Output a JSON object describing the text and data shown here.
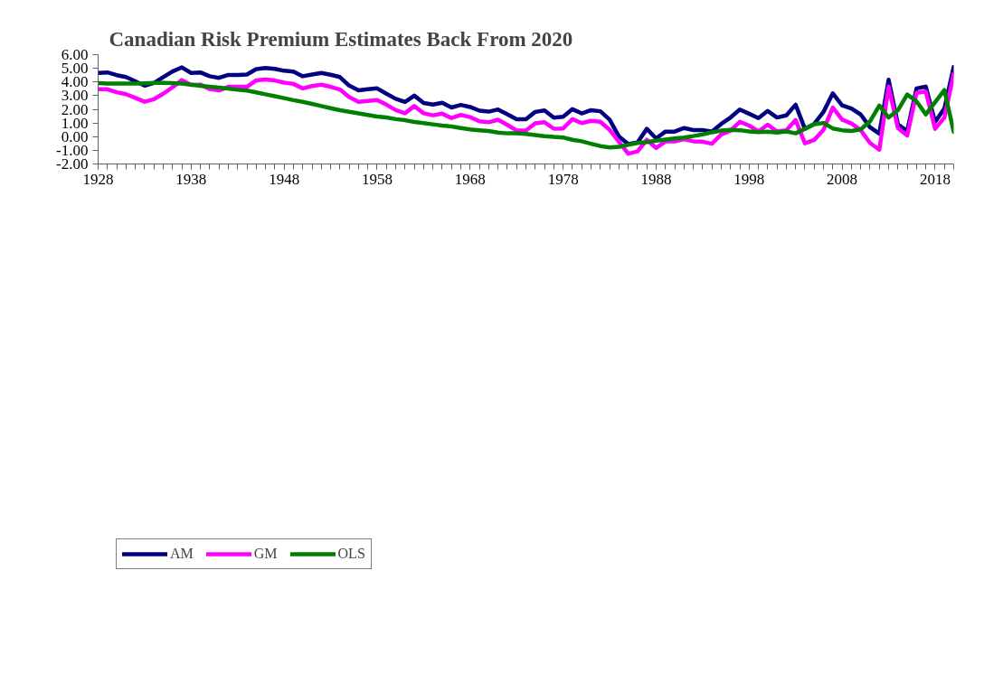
{
  "chart_data": {
    "type": "line",
    "title": "Canadian Risk Premium Estimates Back From 2020",
    "x": [
      1928,
      1929,
      1930,
      1931,
      1932,
      1933,
      1934,
      1935,
      1936,
      1937,
      1938,
      1939,
      1940,
      1941,
      1942,
      1943,
      1944,
      1945,
      1946,
      1947,
      1948,
      1949,
      1950,
      1951,
      1952,
      1953,
      1954,
      1955,
      1956,
      1957,
      1958,
      1959,
      1960,
      1961,
      1962,
      1963,
      1964,
      1965,
      1966,
      1967,
      1968,
      1969,
      1970,
      1971,
      1972,
      1973,
      1974,
      1975,
      1976,
      1977,
      1978,
      1979,
      1980,
      1981,
      1982,
      1983,
      1984,
      1985,
      1986,
      1987,
      1988,
      1989,
      1990,
      1991,
      1992,
      1993,
      1994,
      1995,
      1996,
      1997,
      1998,
      1999,
      2000,
      2001,
      2002,
      2003,
      2004,
      2005,
      2006,
      2007,
      2008,
      2009,
      2010,
      2011,
      2012,
      2013,
      2014,
      2015,
      2016,
      2017,
      2018,
      2019,
      2020
    ],
    "series": [
      {
        "name": "AM",
        "color": "#000080",
        "values": [
          4.66,
          4.7,
          4.5,
          4.36,
          4.05,
          3.73,
          3.93,
          4.36,
          4.77,
          5.07,
          4.66,
          4.7,
          4.42,
          4.3,
          4.52,
          4.52,
          4.55,
          4.94,
          5.02,
          4.96,
          4.82,
          4.76,
          4.42,
          4.55,
          4.66,
          4.53,
          4.36,
          3.73,
          3.39,
          3.47,
          3.53,
          3.14,
          2.77,
          2.54,
          3.0,
          2.46,
          2.35,
          2.48,
          2.13,
          2.32,
          2.17,
          1.9,
          1.83,
          1.99,
          1.63,
          1.27,
          1.27,
          1.81,
          1.92,
          1.39,
          1.45,
          2.01,
          1.7,
          1.94,
          1.86,
          1.25,
          0.01,
          -0.55,
          -0.43,
          0.57,
          -0.13,
          0.37,
          0.37,
          0.63,
          0.48,
          0.48,
          0.36,
          0.93,
          1.4,
          1.98,
          1.68,
          1.36,
          1.88,
          1.4,
          1.55,
          2.34,
          0.57,
          0.93,
          1.81,
          3.17,
          2.29,
          2.06,
          1.62,
          0.69,
          0.22,
          4.16,
          0.91,
          0.41,
          3.53,
          3.66,
          1.07,
          2.06,
          5.11
        ]
      },
      {
        "name": "GM",
        "color": "#ff00ff",
        "values": [
          3.47,
          3.47,
          3.25,
          3.11,
          2.83,
          2.55,
          2.74,
          3.14,
          3.61,
          4.14,
          3.78,
          3.81,
          3.48,
          3.38,
          3.65,
          3.65,
          3.65,
          4.12,
          4.18,
          4.11,
          3.95,
          3.86,
          3.53,
          3.7,
          3.8,
          3.65,
          3.45,
          2.89,
          2.55,
          2.61,
          2.68,
          2.34,
          1.94,
          1.71,
          2.24,
          1.71,
          1.56,
          1.68,
          1.36,
          1.59,
          1.43,
          1.12,
          1.05,
          1.24,
          0.86,
          0.45,
          0.45,
          0.97,
          1.06,
          0.58,
          0.6,
          1.28,
          0.99,
          1.16,
          1.09,
          0.5,
          -0.37,
          -1.25,
          -1.08,
          -0.23,
          -0.83,
          -0.35,
          -0.35,
          -0.18,
          -0.34,
          -0.37,
          -0.52,
          0.16,
          0.44,
          1.09,
          0.81,
          0.38,
          0.88,
          0.38,
          0.47,
          1.22,
          -0.49,
          -0.24,
          0.5,
          2.12,
          1.25,
          0.97,
          0.47,
          -0.46,
          -0.96,
          3.66,
          0.63,
          0.08,
          3.2,
          3.3,
          0.57,
          1.4,
          4.59
        ]
      },
      {
        "name": "OLS",
        "color": "#008000",
        "values": [
          3.91,
          3.88,
          3.88,
          3.88,
          3.88,
          3.9,
          3.93,
          3.94,
          3.91,
          3.88,
          3.8,
          3.72,
          3.65,
          3.58,
          3.52,
          3.43,
          3.37,
          3.24,
          3.1,
          2.96,
          2.82,
          2.67,
          2.54,
          2.4,
          2.24,
          2.08,
          1.93,
          1.82,
          1.7,
          1.59,
          1.47,
          1.4,
          1.28,
          1.2,
          1.07,
          0.99,
          0.9,
          0.81,
          0.74,
          0.63,
          0.53,
          0.47,
          0.41,
          0.3,
          0.24,
          0.24,
          0.2,
          0.12,
          0.04,
          -0.02,
          -0.06,
          -0.23,
          -0.34,
          -0.52,
          -0.69,
          -0.79,
          -0.75,
          -0.6,
          -0.46,
          -0.4,
          -0.3,
          -0.21,
          -0.13,
          -0.06,
          0.04,
          0.16,
          0.32,
          0.44,
          0.49,
          0.47,
          0.38,
          0.33,
          0.37,
          0.3,
          0.38,
          0.24,
          0.57,
          0.91,
          1.0,
          0.6,
          0.47,
          0.41,
          0.53,
          1.12,
          2.27,
          1.4,
          1.93,
          3.08,
          2.58,
          1.63,
          2.52,
          3.41,
          0.35
        ]
      }
    ],
    "xlim": [
      1928,
      2020
    ],
    "xticks": [
      1928,
      1938,
      1948,
      1958,
      1968,
      1978,
      1988,
      1998,
      2008,
      2018
    ],
    "ylim": [
      -2,
      6
    ],
    "yticks": [
      {
        "value": -2,
        "label": "-2.00"
      },
      {
        "value": -1,
        "label": "-1.00"
      },
      {
        "value": 0,
        "label": "0.00"
      },
      {
        "value": 1,
        "label": "1.00"
      },
      {
        "value": 2,
        "label": "2.00"
      },
      {
        "value": 3,
        "label": "3.00"
      },
      {
        "value": 4,
        "label": "4.00"
      },
      {
        "value": 5,
        "label": "5.00"
      },
      {
        "value": 6,
        "label": "6.00"
      }
    ],
    "grid": false,
    "legend": "bottom",
    "marker": "none",
    "line_style": "solid"
  }
}
